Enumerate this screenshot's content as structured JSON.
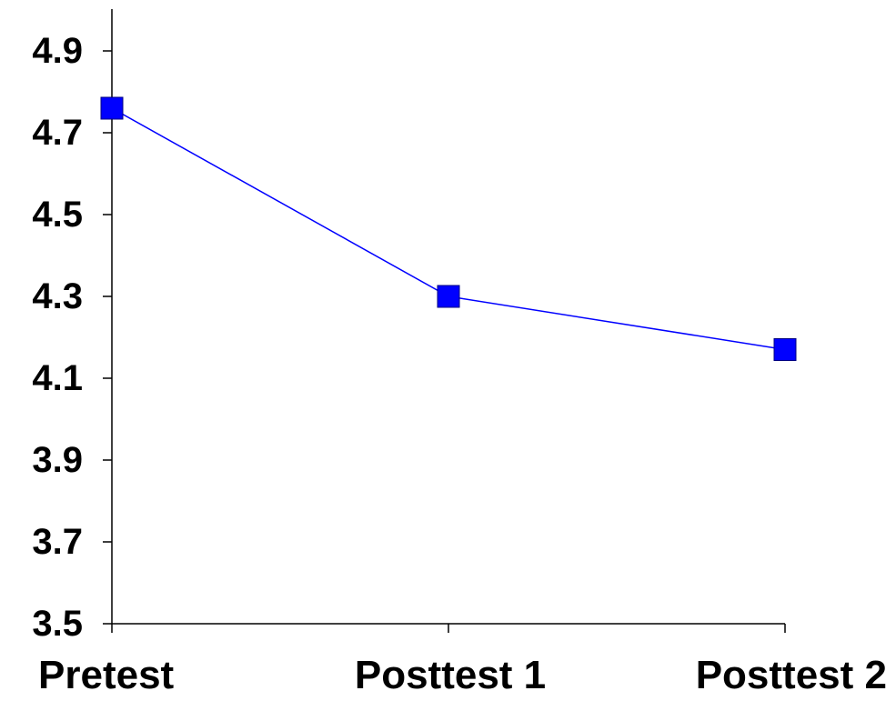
{
  "chart_data": {
    "type": "line",
    "title": "",
    "xlabel": "",
    "ylabel": "",
    "categories": [
      "Pretest",
      "Posttest 1",
      "Posttest 2"
    ],
    "series": [
      {
        "values": [
          4.76,
          4.3,
          4.17
        ],
        "color": "#0000FF",
        "marker": "square"
      }
    ],
    "ylim": [
      3.5,
      5.0
    ],
    "yticks": [
      3.5,
      3.7,
      3.9,
      4.1,
      4.3,
      4.5,
      4.7,
      4.9
    ],
    "ytick_labels": [
      "3.5",
      "3.7",
      "3.9",
      "4.1",
      "4.3",
      "4.5",
      "4.7",
      "4.9"
    ],
    "grid": false,
    "legend": "none"
  }
}
